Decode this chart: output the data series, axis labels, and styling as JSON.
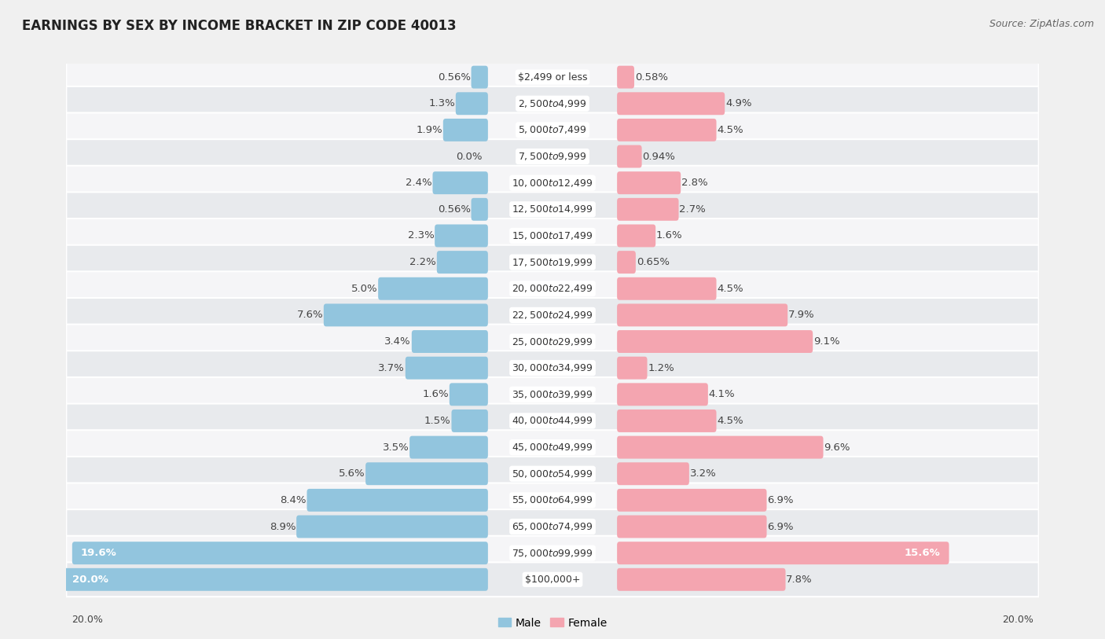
{
  "title": "EARNINGS BY SEX BY INCOME BRACKET IN ZIP CODE 40013",
  "source": "Source: ZipAtlas.com",
  "categories": [
    "$2,499 or less",
    "$2,500 to $4,999",
    "$5,000 to $7,499",
    "$7,500 to $9,999",
    "$10,000 to $12,499",
    "$12,500 to $14,999",
    "$15,000 to $17,499",
    "$17,500 to $19,999",
    "$20,000 to $22,499",
    "$22,500 to $24,999",
    "$25,000 to $29,999",
    "$30,000 to $34,999",
    "$35,000 to $39,999",
    "$40,000 to $44,999",
    "$45,000 to $49,999",
    "$50,000 to $54,999",
    "$55,000 to $64,999",
    "$65,000 to $74,999",
    "$75,000 to $99,999",
    "$100,000+"
  ],
  "male_values": [
    0.56,
    1.3,
    1.9,
    0.0,
    2.4,
    0.56,
    2.3,
    2.2,
    5.0,
    7.6,
    3.4,
    3.7,
    1.6,
    1.5,
    3.5,
    5.6,
    8.4,
    8.9,
    19.6,
    20.0
  ],
  "female_values": [
    0.58,
    4.9,
    4.5,
    0.94,
    2.8,
    2.7,
    1.6,
    0.65,
    4.5,
    7.9,
    9.1,
    1.2,
    4.1,
    4.5,
    9.6,
    3.2,
    6.9,
    6.9,
    15.6,
    7.8
  ],
  "male_color": "#92c5de",
  "female_color": "#f4a5b0",
  "male_label": "Male",
  "female_label": "Female",
  "row_color_odd": "#e8eaed",
  "row_color_even": "#f5f5f7",
  "max_value": 20.0,
  "title_fontsize": 12,
  "source_fontsize": 9,
  "label_fontsize": 9.5,
  "category_fontsize": 9
}
